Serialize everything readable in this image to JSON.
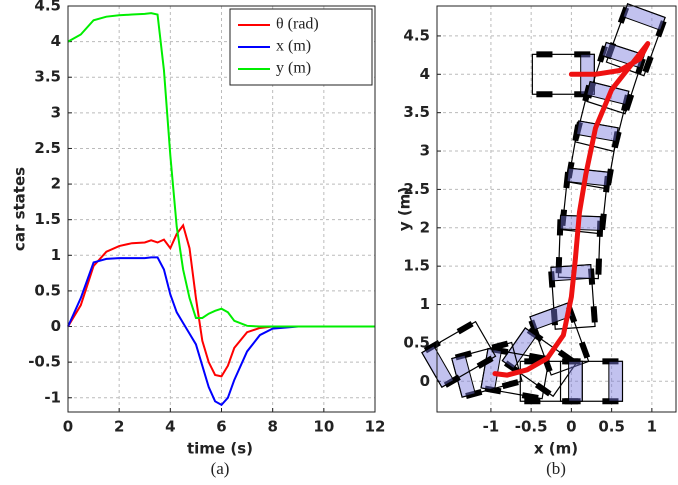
{
  "chart_data": [
    {
      "type": "line",
      "xlabel": "time (s)",
      "ylabel": "car states",
      "caption": "(a)",
      "x": [
        0,
        0.5,
        1,
        1.5,
        2,
        2.5,
        3,
        3.25,
        3.5,
        3.75,
        4,
        4.25,
        4.5,
        4.75,
        5,
        5.25,
        5.5,
        5.75,
        6,
        6.25,
        6.5,
        7,
        7.5,
        8,
        9,
        10,
        11,
        12
      ],
      "series": [
        {
          "name": "θ (rad)",
          "color": "#ff0000",
          "values": [
            0,
            0.3,
            0.85,
            1.05,
            1.13,
            1.17,
            1.18,
            1.21,
            1.18,
            1.22,
            1.1,
            1.3,
            1.42,
            1.1,
            0.4,
            -0.2,
            -0.5,
            -0.68,
            -0.7,
            -0.55,
            -0.3,
            -0.08,
            -0.02,
            0,
            0,
            0,
            0,
            0
          ]
        },
        {
          "name": "x (m)",
          "color": "#0000ff",
          "values": [
            0,
            0.4,
            0.9,
            0.95,
            0.96,
            0.96,
            0.96,
            0.97,
            0.97,
            0.8,
            0.45,
            0.2,
            0.05,
            -0.1,
            -0.25,
            -0.55,
            -0.85,
            -1.05,
            -1.1,
            -1.0,
            -0.75,
            -0.35,
            -0.12,
            -0.03,
            0,
            0,
            0,
            0
          ]
        },
        {
          "name": "y (m)",
          "color": "#00ee00",
          "values": [
            4,
            4.1,
            4.3,
            4.35,
            4.37,
            4.38,
            4.39,
            4.4,
            4.38,
            3.6,
            2.4,
            1.4,
            0.8,
            0.4,
            0.12,
            0.12,
            0.18,
            0.22,
            0.25,
            0.2,
            0.08,
            0.01,
            0,
            0,
            0,
            0,
            0,
            0
          ]
        }
      ],
      "xlim": [
        0,
        12
      ],
      "ylim": [
        -1.2,
        4.5
      ],
      "xticks": [
        0,
        2,
        4,
        6,
        8,
        10,
        12
      ],
      "yticks": [
        -1,
        -0.5,
        0,
        0.5,
        1,
        1.5,
        2,
        2.5,
        3,
        3.5,
        4,
        4.5
      ],
      "grid": true,
      "legend": "upper right"
    },
    {
      "type": "path",
      "xlabel": "x (m)",
      "ylabel": "y (m)",
      "caption": "(b)",
      "x": [
        0,
        0.3,
        0.6,
        0.85,
        0.95,
        0.8,
        0.5,
        0.3,
        0.18,
        0.1,
        0.05,
        0,
        -0.1,
        -0.3,
        -0.55,
        -0.8,
        -0.95
      ],
      "y": [
        4,
        4,
        4.05,
        4.2,
        4.4,
        4.2,
        3.8,
        3.3,
        2.7,
        2.2,
        1.6,
        1.1,
        0.6,
        0.3,
        0.15,
        0.08,
        0.1
      ],
      "color": "#ee1111",
      "cars": {
        "x": [
          -0.1,
          0.8,
          0.55,
          0.38,
          0.27,
          0.17,
          0.1,
          0.02,
          -0.15,
          -0.4,
          -0.7,
          -1.05,
          -1.4,
          0.25,
          -0.25
        ],
        "y": [
          4,
          4.45,
          3.95,
          3.45,
          2.95,
          2.35,
          1.75,
          1.1,
          0.55,
          0.25,
          0.1,
          0.15,
          0.35,
          0,
          0
        ],
        "heading": [
          0,
          70,
          72,
          76,
          80,
          84,
          88,
          94,
          110,
          145,
          170,
          195,
          210,
          0,
          0
        ]
      },
      "xlim": [
        -1.67,
        1.3
      ],
      "ylim": [
        -0.4,
        4.89
      ],
      "xticks": [
        -1,
        -0.5,
        0,
        0.5,
        1
      ],
      "yticks": [
        0,
        0.5,
        1,
        1.5,
        2,
        2.5,
        3,
        3.5,
        4,
        4.5
      ],
      "grid": true
    }
  ]
}
